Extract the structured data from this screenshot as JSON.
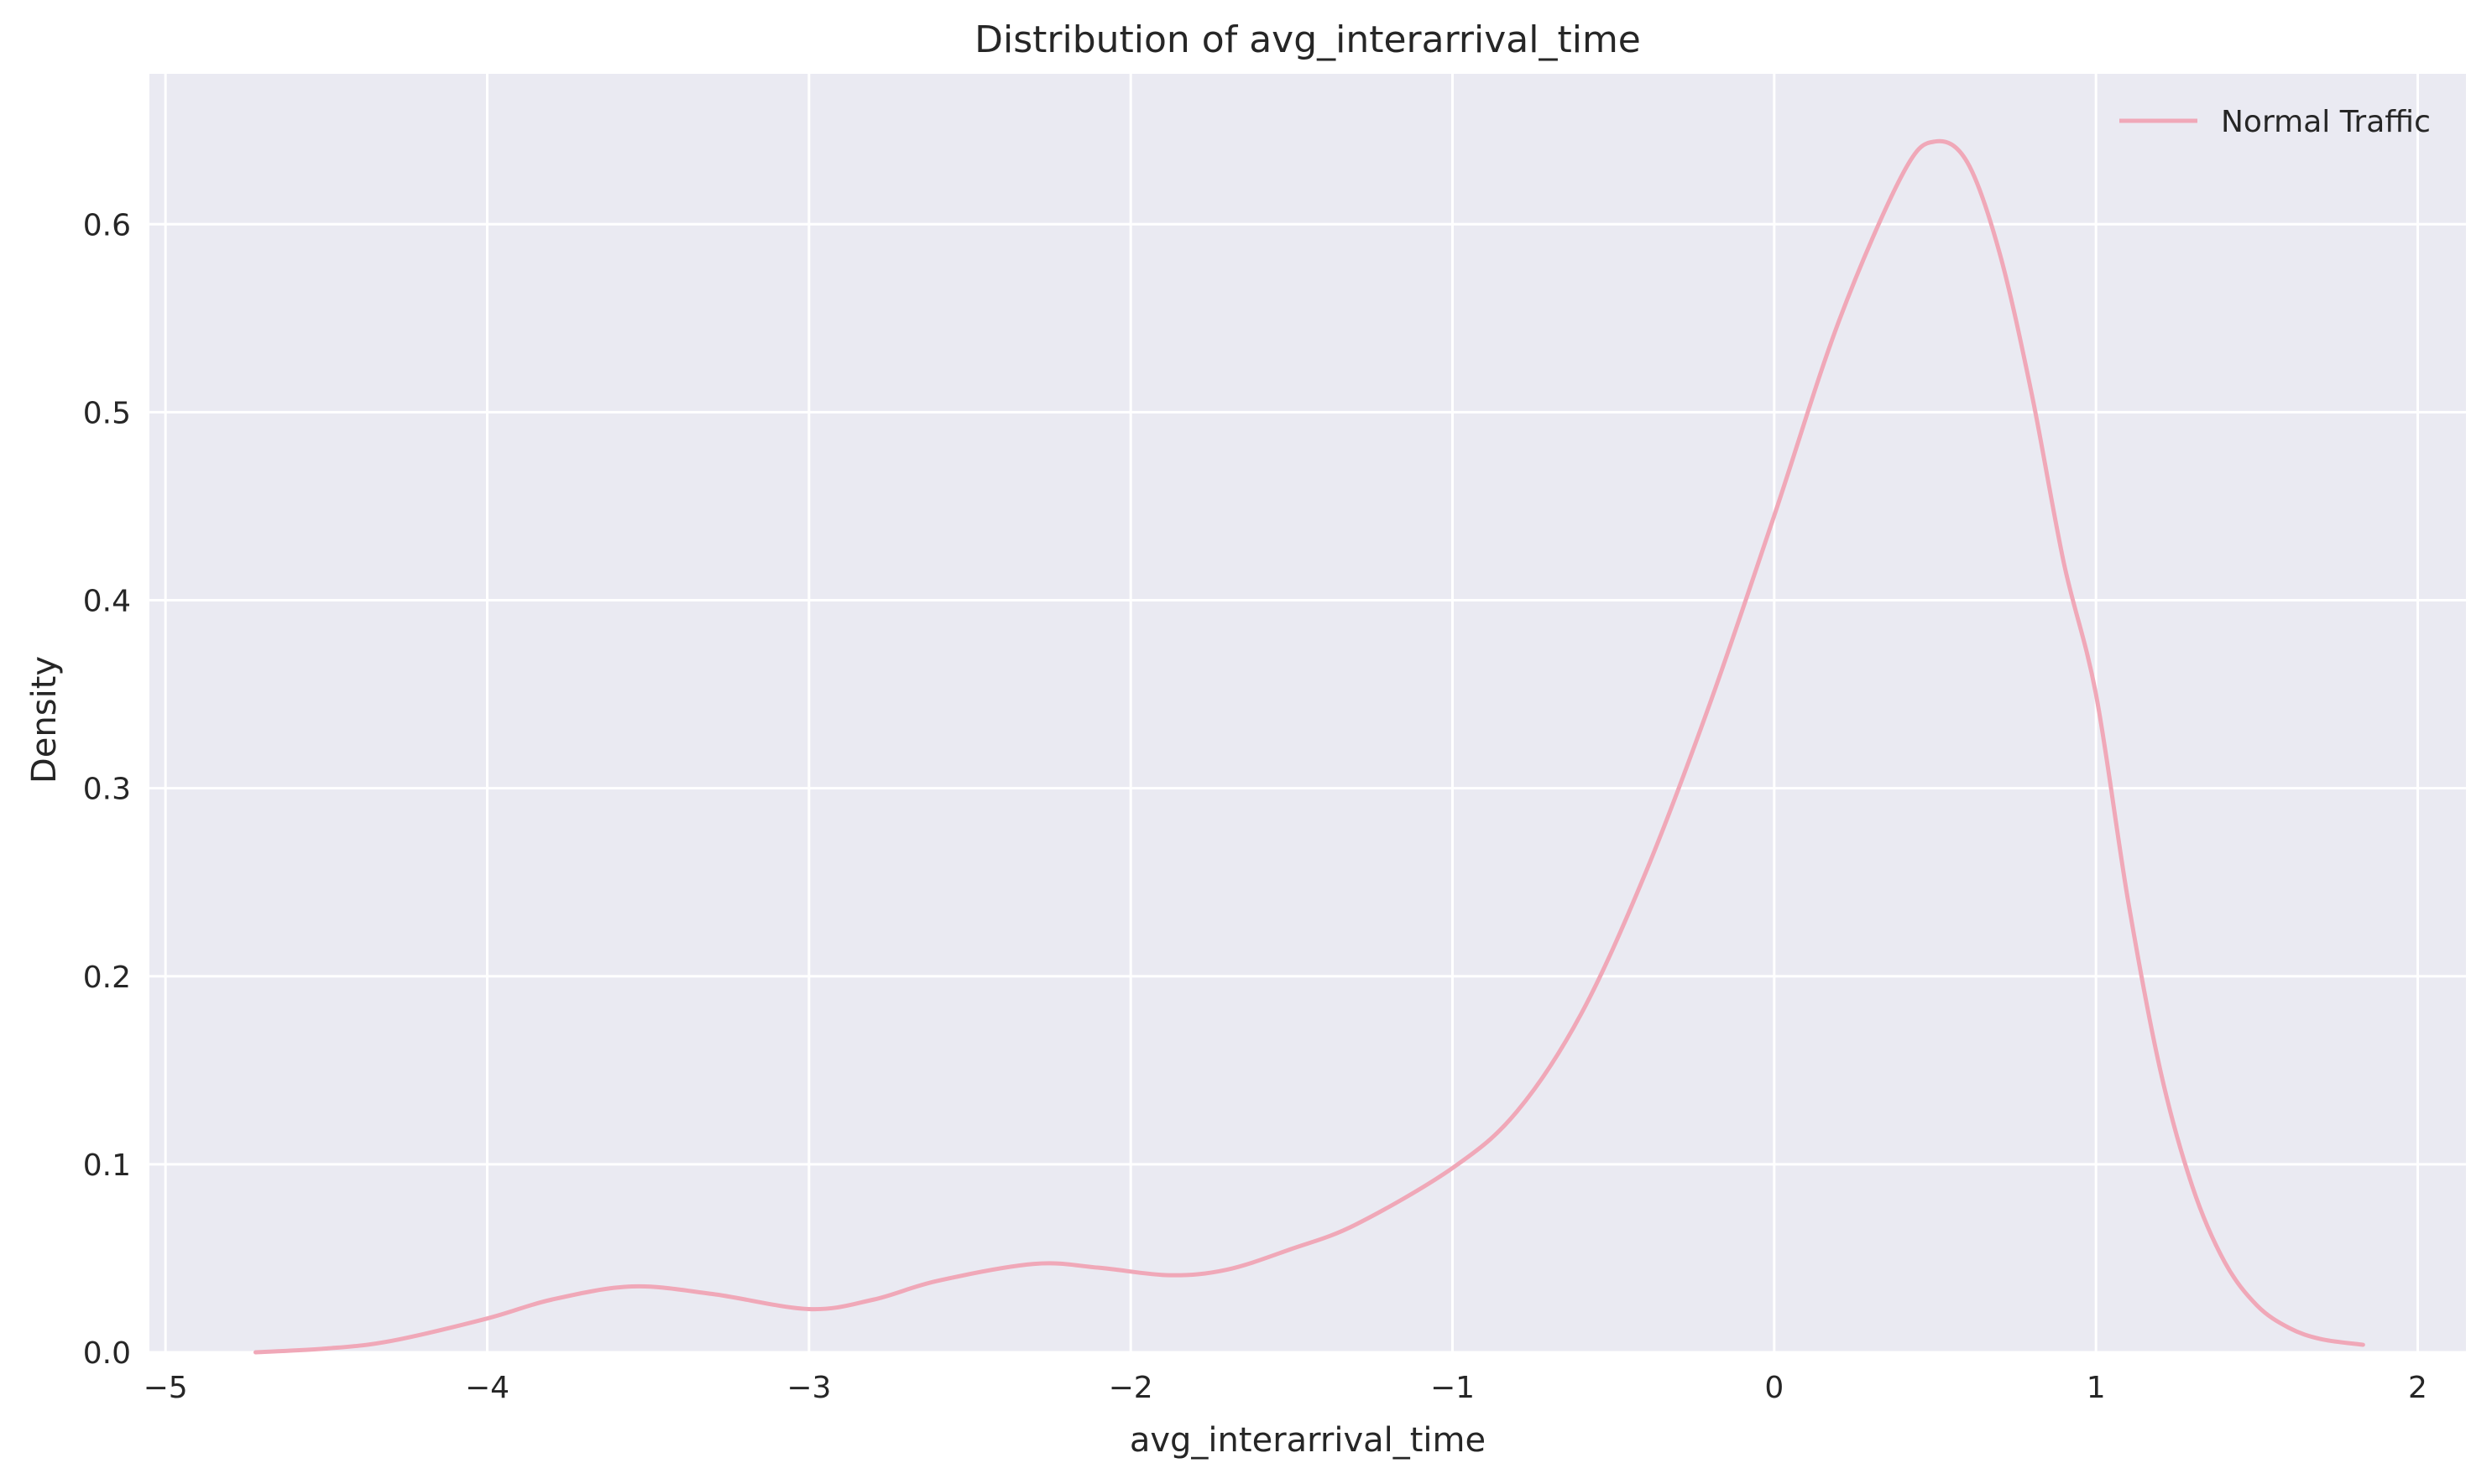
{
  "chart_data": {
    "type": "line",
    "title": "Distribution of avg_interarrival_time",
    "xlabel": "avg_interarrival_time",
    "ylabel": "Density",
    "xlim": [
      -5.05,
      2.15
    ],
    "ylim": [
      0,
      0.68
    ],
    "xticks": [
      -5,
      -4,
      -3,
      -2,
      -1,
      0,
      1,
      2
    ],
    "xtick_labels": [
      "−5",
      "−4",
      "−3",
      "−2",
      "−1",
      "0",
      "1",
      "2"
    ],
    "yticks": [
      0.0,
      0.1,
      0.2,
      0.3,
      0.4,
      0.5,
      0.6
    ],
    "ytick_labels": [
      "0.0",
      "0.1",
      "0.2",
      "0.3",
      "0.4",
      "0.5",
      "0.6"
    ],
    "grid": true,
    "legend_position": "top-right",
    "background_color": "#eaeaf2",
    "grid_color": "#ffffff",
    "series": [
      {
        "name": "Normal Traffic",
        "color": "#f0a8b8",
        "x": [
          -4.72,
          -4.5,
          -4.3,
          -4.0,
          -3.8,
          -3.55,
          -3.3,
          -3.0,
          -2.8,
          -2.6,
          -2.3,
          -2.1,
          -1.88,
          -1.7,
          -1.5,
          -1.3,
          -1.0,
          -0.8,
          -0.6,
          -0.4,
          -0.2,
          0.0,
          0.2,
          0.4,
          0.5,
          0.6,
          0.7,
          0.8,
          0.9,
          1.0,
          1.1,
          1.2,
          1.3,
          1.4,
          1.5,
          1.6,
          1.7,
          1.83
        ],
        "y": [
          0.0,
          0.002,
          0.006,
          0.018,
          0.028,
          0.035,
          0.031,
          0.023,
          0.028,
          0.038,
          0.047,
          0.045,
          0.041,
          0.044,
          0.055,
          0.068,
          0.098,
          0.128,
          0.18,
          0.255,
          0.345,
          0.445,
          0.548,
          0.627,
          0.644,
          0.633,
          0.585,
          0.51,
          0.42,
          0.35,
          0.24,
          0.15,
          0.088,
          0.048,
          0.025,
          0.013,
          0.007,
          0.004
        ]
      }
    ]
  }
}
